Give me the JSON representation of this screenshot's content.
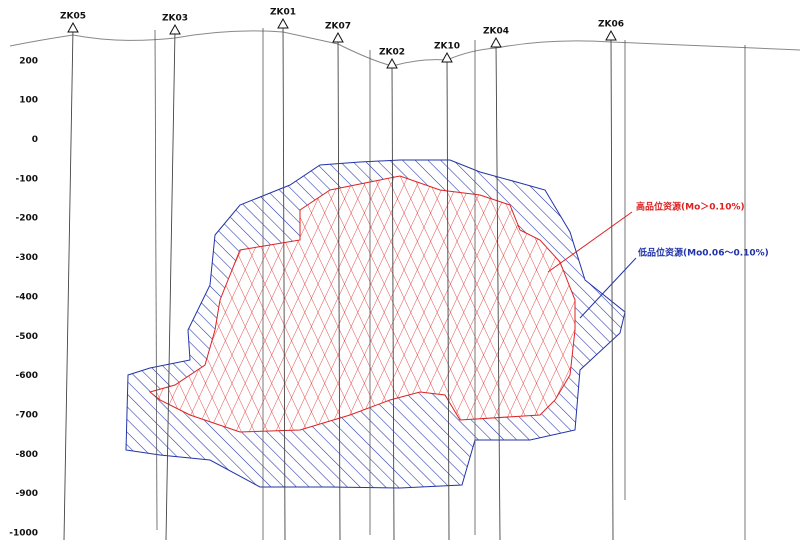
{
  "boreholes": [
    {
      "label": "ZK05"
    },
    {
      "label": "ZK03"
    },
    {
      "label": "ZK01"
    },
    {
      "label": "ZK07"
    },
    {
      "label": "ZK02"
    },
    {
      "label": "ZK10"
    },
    {
      "label": "ZK04"
    },
    {
      "label": "ZK06"
    }
  ],
  "elevation_axis": {
    "ticks": [
      200,
      100,
      0,
      -100,
      -200,
      -300,
      -400,
      -500,
      -600,
      -700,
      -800,
      -900,
      -1000
    ]
  },
  "annotations": {
    "high_grade": "高品位资源(Mo＞0.10%)",
    "low_grade": "低品位资源(Mo0.06～0.10%)"
  }
}
